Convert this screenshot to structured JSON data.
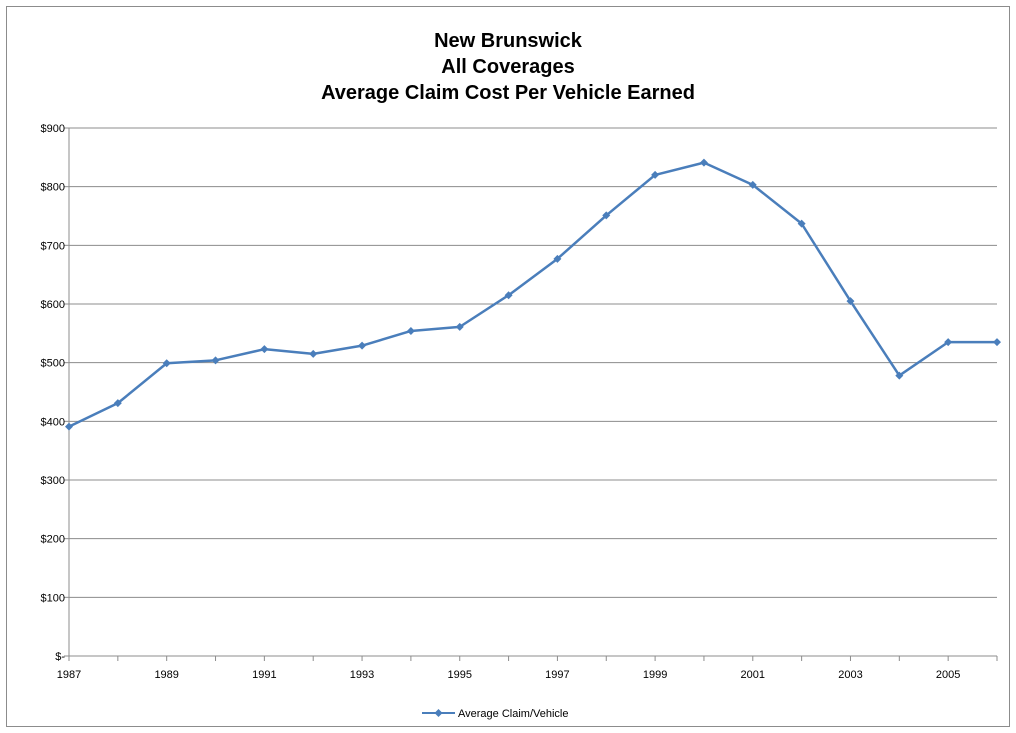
{
  "chart_data": {
    "type": "line",
    "title_lines": [
      "New Brunswick",
      "All Coverages",
      "Average Claim Cost Per Vehicle Earned"
    ],
    "xlabel": "",
    "ylabel": "",
    "x": [
      1987,
      1988,
      1989,
      1990,
      1991,
      1992,
      1993,
      1994,
      1995,
      1996,
      1997,
      1998,
      1999,
      2000,
      2001,
      2002,
      2003,
      2004,
      2005,
      2006
    ],
    "x_tick_labels": [
      "1987",
      "1989",
      "1991",
      "1993",
      "1995",
      "1997",
      "1999",
      "2001",
      "2003",
      "2005"
    ],
    "y_tick_labels": [
      "$-",
      "$100",
      "$200",
      "$300",
      "$400",
      "$500",
      "$600",
      "$700",
      "$800",
      "$900"
    ],
    "ylim": [
      0,
      900
    ],
    "y_major_step": 100,
    "grid": "horizontal",
    "legend_position": "bottom",
    "series": [
      {
        "name": "Average Claim/Vehicle",
        "color": "#4a7ebb",
        "marker": "diamond",
        "values": [
          391,
          431,
          499,
          504,
          523,
          515,
          529,
          554,
          561,
          615,
          677,
          751,
          820,
          841,
          803,
          737,
          605,
          478,
          535,
          535
        ]
      }
    ]
  }
}
